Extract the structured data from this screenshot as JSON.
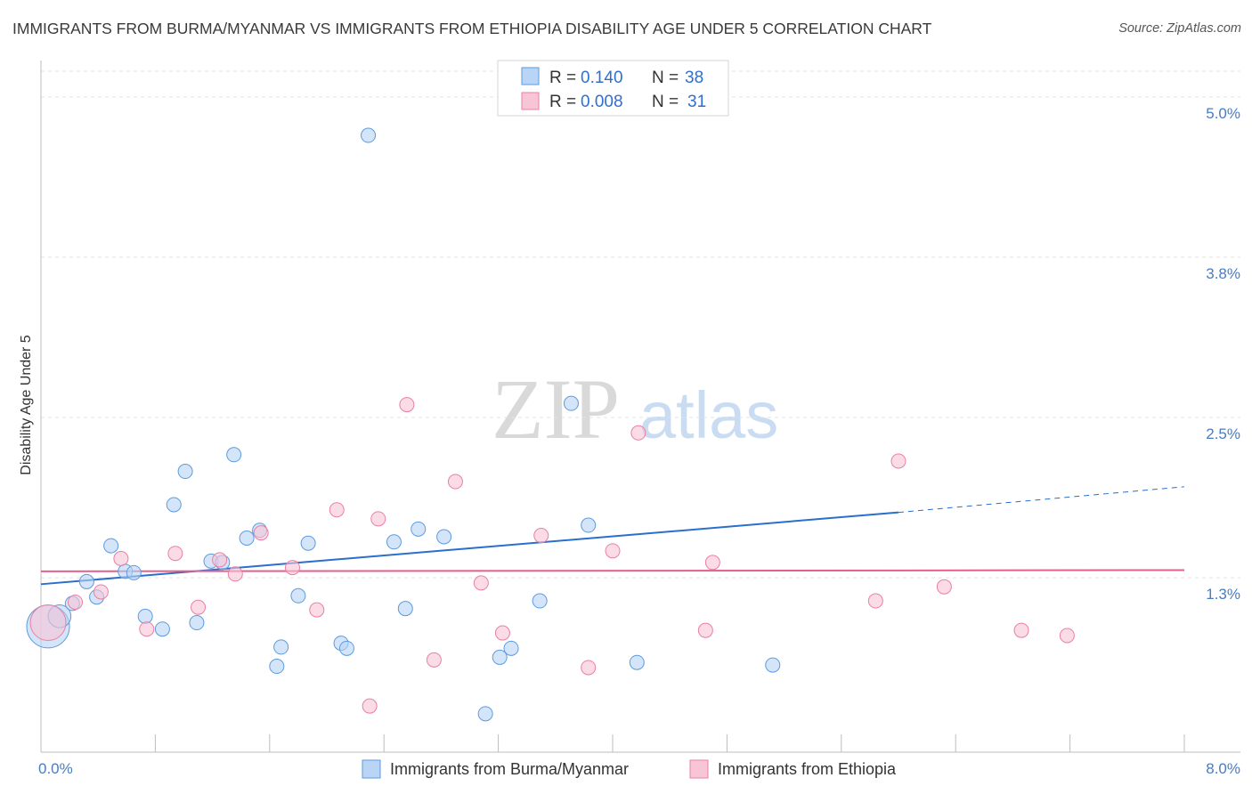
{
  "title": "IMMIGRANTS FROM BURMA/MYANMAR VS IMMIGRANTS FROM ETHIOPIA DISABILITY AGE UNDER 5 CORRELATION CHART",
  "source": "Source: ZipAtlas.com",
  "watermark": {
    "zip": "ZIP",
    "atlas": "atlas"
  },
  "colors": {
    "blue": "#5b9be0",
    "blue_fill": "#b9d4f5",
    "blue_line": "#2a6fcc",
    "pink": "#ea7fa3",
    "pink_fill": "#f8c5d6",
    "pink_line": "#e4608c",
    "tick_text": "#4a7cc0"
  },
  "chart_data": {
    "type": "scatter",
    "title": "IMMIGRANTS FROM BURMA/MYANMAR VS IMMIGRANTS FROM ETHIOPIA DISABILITY AGE UNDER 5 CORRELATION CHART",
    "xlabel": "",
    "ylabel": "Disability Age Under 5",
    "x_tick_labels": [
      "0.0%",
      "8.0%"
    ],
    "y_tick_labels": [
      "5.0%",
      "3.8%",
      "2.5%",
      "1.3%"
    ],
    "y_ticks": [
      5.0,
      3.75,
      2.5,
      1.25
    ],
    "xlim": [
      0,
      8
    ],
    "ylim": [
      0.05,
      5.2
    ],
    "grid": "horizontal dashed",
    "legend_position": "top-center",
    "legend": [
      {
        "r_label": "R =",
        "r_value": "0.140",
        "n_label": "N =",
        "n_value": "38",
        "color": "blue"
      },
      {
        "r_label": "R =",
        "r_value": "0.008",
        "n_label": "N =",
        "n_value": "31",
        "color": "pink"
      }
    ],
    "series": [
      {
        "name": "Immigrants from Burma/Myanmar",
        "color": "blue",
        "trend": {
          "x0": 0.0,
          "y0": 1.2,
          "x1": 6.0,
          "y1": 1.76,
          "dash_x1": 8.0,
          "dash_y1": 1.96
        },
        "points": [
          [
            0.05,
            0.87,
            3
          ],
          [
            0.13,
            0.95,
            1.6
          ],
          [
            0.22,
            1.05,
            1
          ],
          [
            0.32,
            1.22,
            1
          ],
          [
            0.39,
            1.1,
            1
          ],
          [
            0.49,
            1.5,
            1
          ],
          [
            0.59,
            1.3,
            1
          ],
          [
            0.65,
            1.29,
            1
          ],
          [
            0.73,
            0.95,
            1
          ],
          [
            0.85,
            0.85,
            1
          ],
          [
            0.93,
            1.82,
            1
          ],
          [
            1.01,
            2.08,
            1
          ],
          [
            1.09,
            0.9,
            1
          ],
          [
            1.19,
            1.38,
            1
          ],
          [
            1.27,
            1.37,
            1
          ],
          [
            1.35,
            2.21,
            1
          ],
          [
            1.44,
            1.56,
            1
          ],
          [
            1.53,
            1.62,
            1
          ],
          [
            1.65,
            0.56,
            1
          ],
          [
            1.68,
            0.71,
            1
          ],
          [
            1.8,
            1.11,
            1
          ],
          [
            1.87,
            1.52,
            1
          ],
          [
            2.1,
            0.74,
            1
          ],
          [
            2.14,
            0.7,
            1
          ],
          [
            2.29,
            4.7,
            1
          ],
          [
            2.47,
            1.53,
            1
          ],
          [
            2.55,
            1.01,
            1
          ],
          [
            2.64,
            1.63,
            1
          ],
          [
            2.82,
            1.57,
            1
          ],
          [
            3.11,
            0.19,
            1
          ],
          [
            3.21,
            0.63,
            1
          ],
          [
            3.29,
            0.7,
            1
          ],
          [
            3.49,
            1.07,
            1
          ],
          [
            3.71,
            2.61,
            1
          ],
          [
            3.83,
            1.66,
            1
          ],
          [
            4.17,
            0.59,
            1
          ],
          [
            5.12,
            0.57,
            1
          ],
          [
            4.1,
            5.0,
            1
          ]
        ]
      },
      {
        "name": "Immigrants from Ethiopia",
        "color": "pink",
        "trend": {
          "x0": 0.0,
          "y0": 1.3,
          "x1": 8.0,
          "y1": 1.31
        },
        "points": [
          [
            0.05,
            0.9,
            2.5
          ],
          [
            0.24,
            1.06,
            1
          ],
          [
            0.42,
            1.14,
            1
          ],
          [
            0.56,
            1.4,
            1
          ],
          [
            0.74,
            0.85,
            1
          ],
          [
            0.94,
            1.44,
            1
          ],
          [
            1.1,
            1.02,
            1
          ],
          [
            1.25,
            1.39,
            1
          ],
          [
            1.36,
            1.28,
            1
          ],
          [
            1.54,
            1.6,
            1
          ],
          [
            1.76,
            1.33,
            1
          ],
          [
            1.93,
            1.0,
            1
          ],
          [
            2.07,
            1.78,
            1
          ],
          [
            2.3,
            0.25,
            1
          ],
          [
            2.36,
            1.71,
            1
          ],
          [
            2.56,
            2.6,
            1
          ],
          [
            2.75,
            0.61,
            1
          ],
          [
            2.9,
            2.0,
            1
          ],
          [
            3.08,
            1.21,
            1
          ],
          [
            3.23,
            0.82,
            1
          ],
          [
            3.5,
            1.58,
            1
          ],
          [
            3.83,
            0.55,
            1
          ],
          [
            4.0,
            1.46,
            1
          ],
          [
            4.18,
            2.38,
            1
          ],
          [
            4.65,
            0.84,
            1
          ],
          [
            4.7,
            1.37,
            1
          ],
          [
            5.84,
            1.07,
            1
          ],
          [
            6.0,
            2.16,
            1
          ],
          [
            6.32,
            1.18,
            1
          ],
          [
            6.86,
            0.84,
            1
          ],
          [
            7.18,
            0.8,
            1
          ]
        ]
      }
    ]
  }
}
